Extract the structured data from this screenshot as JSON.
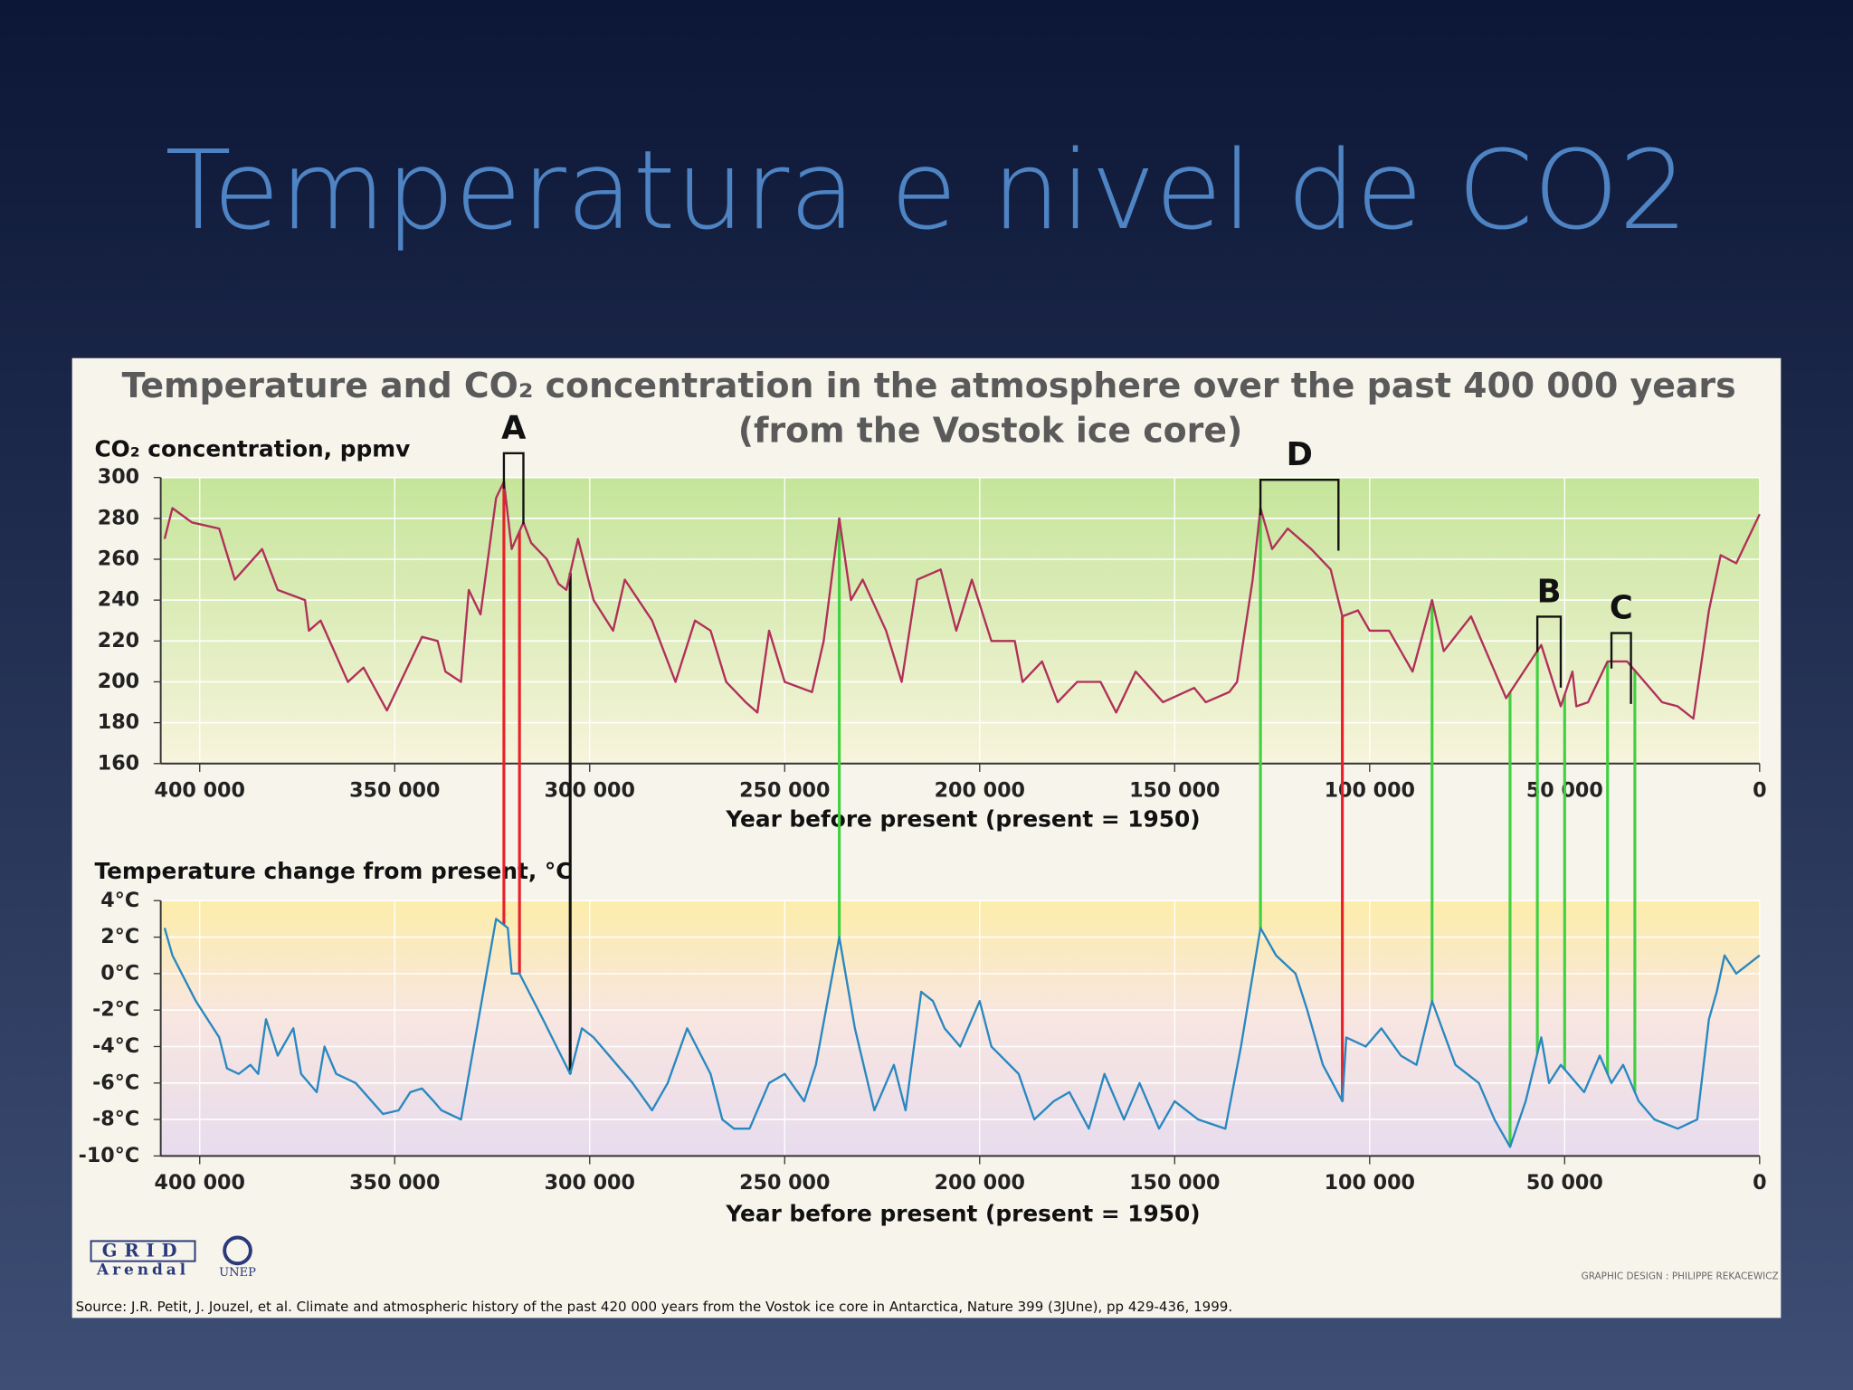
{
  "slide_title": "Temperatura e nivel de CO2",
  "figure": {
    "title": "Temperature and CO₂ concentration in the atmosphere over the past 400 000 years",
    "subtitle": "(from the Vostok ice core)",
    "source": "Source: J.R. Petit, J. Jouzel, et al. Climate and atmospheric history of the past 420 000 years from the Vostok ice core in Antarctica, Nature 399 (3JUne), pp 429-436, 1999.",
    "credit": "GRAPHIC DESIGN : PHILIPPE REKACEWICZ",
    "logo_grid": "GRID",
    "logo_arendal": "Arendal",
    "logo_unep": "UNEP",
    "annotations": [
      {
        "text": "A",
        "x": [
          322000,
          317000
        ]
      },
      {
        "text": "D",
        "x": [
          128000,
          108000
        ]
      },
      {
        "text": "B",
        "x": [
          57000,
          51000
        ]
      },
      {
        "text": "C",
        "x": [
          38000,
          33000
        ]
      }
    ],
    "events": [
      {
        "x": 322000,
        "color": "#e8202a"
      },
      {
        "x": 318000,
        "color": "#e8202a"
      },
      {
        "x": 305000,
        "color": "#111111"
      },
      {
        "x": 107000,
        "color": "#e8202a"
      },
      {
        "x": 236000,
        "color": "#40d040"
      },
      {
        "x": 128000,
        "color": "#40d040"
      },
      {
        "x": 84000,
        "color": "#40d040"
      },
      {
        "x": 64000,
        "color": "#40d040"
      },
      {
        "x": 57000,
        "color": "#40d040"
      },
      {
        "x": 50000,
        "color": "#40d040"
      },
      {
        "x": 39000,
        "color": "#40d040"
      },
      {
        "x": 32000,
        "color": "#40d040"
      }
    ]
  },
  "chart_data": [
    {
      "type": "line",
      "y_label": "CO₂ concentration, ppmv",
      "x_label": "Year before present (present = 1950)",
      "color": "#b0305a",
      "x": [
        409000,
        407000,
        402000,
        395000,
        391000,
        384000,
        380000,
        373000,
        372000,
        369000,
        362000,
        358000,
        352000,
        343000,
        339000,
        337000,
        333000,
        331000,
        328000,
        324000,
        322000,
        320000,
        317000,
        315000,
        311000,
        308000,
        306000,
        303000,
        299000,
        294000,
        291000,
        284000,
        278000,
        273000,
        269000,
        265000,
        260000,
        257000,
        254000,
        250000,
        243000,
        240000,
        236000,
        233000,
        230000,
        224000,
        220000,
        216000,
        210000,
        206000,
        202000,
        197000,
        191000,
        189000,
        184000,
        180000,
        175000,
        169000,
        165000,
        160000,
        153000,
        145000,
        142000,
        136000,
        134000,
        130000,
        128000,
        125000,
        121000,
        115000,
        110000,
        107000,
        103000,
        100000,
        95000,
        92000,
        89000,
        84000,
        81000,
        74000,
        65000,
        56000,
        51000,
        48000,
        47000,
        44000,
        39000,
        34000,
        25000,
        21000,
        17000,
        13000,
        10000,
        6000,
        0
      ],
      "values": [
        270,
        285,
        278,
        275,
        250,
        265,
        245,
        240,
        225,
        230,
        200,
        207,
        186,
        222,
        220,
        205,
        200,
        245,
        233,
        290,
        298,
        265,
        278,
        268,
        260,
        248,
        245,
        270,
        240,
        225,
        250,
        230,
        200,
        230,
        225,
        200,
        190,
        185,
        225,
        200,
        195,
        220,
        280,
        240,
        250,
        225,
        200,
        250,
        255,
        225,
        250,
        220,
        220,
        200,
        210,
        190,
        200,
        200,
        185,
        205,
        190,
        197,
        190,
        195,
        200,
        250,
        285,
        265,
        275,
        265,
        255,
        232,
        235,
        225,
        225,
        215,
        205,
        240,
        215,
        232,
        192,
        218,
        188,
        205,
        188,
        190,
        210,
        210,
        190,
        188,
        182,
        235,
        262,
        258,
        282
      ],
      "xlim": [
        410000,
        0
      ],
      "xticks": [
        {
          "value": 400000,
          "label": "400 000"
        },
        {
          "value": 350000,
          "label": "350 000"
        },
        {
          "value": 300000,
          "label": "300 000"
        },
        {
          "value": 250000,
          "label": "250 000"
        },
        {
          "value": 200000,
          "label": "200 000"
        },
        {
          "value": 150000,
          "label": "150 000"
        },
        {
          "value": 100000,
          "label": "100 000"
        },
        {
          "value": 50000,
          "label": "50 000"
        },
        0
      ],
      "ylim": [
        160,
        300
      ],
      "yticks": [
        160,
        180,
        200,
        220,
        240,
        260,
        280,
        300
      ],
      "grid": true
    },
    {
      "type": "line",
      "y_label": "Temperature change from present, °C",
      "x_label": "Year before present (present = 1950)",
      "color": "#2a88c0",
      "x": [
        409000,
        407000,
        401000,
        395000,
        393000,
        390000,
        387000,
        385000,
        383000,
        380000,
        376000,
        374000,
        370000,
        368000,
        365000,
        360000,
        353000,
        349000,
        346000,
        343000,
        340000,
        338000,
        333000,
        324000,
        321000,
        320000,
        318000,
        312000,
        305000,
        302000,
        299000,
        293000,
        289000,
        284000,
        280000,
        275000,
        269000,
        266000,
        263000,
        259000,
        254000,
        250000,
        245000,
        242000,
        236000,
        232000,
        227000,
        222000,
        219000,
        215000,
        212000,
        209000,
        205000,
        200000,
        197000,
        190000,
        186000,
        181000,
        177000,
        172000,
        168000,
        163000,
        159000,
        154000,
        150000,
        144000,
        137000,
        133000,
        128000,
        124000,
        119000,
        116000,
        112000,
        107000,
        106000,
        101000,
        97000,
        92000,
        88000,
        84000,
        78000,
        72000,
        68000,
        64000,
        60000,
        56000,
        54000,
        51000,
        45000,
        41000,
        38000,
        35000,
        31000,
        27000,
        21000,
        16000,
        13000,
        11000,
        9000,
        6000,
        3000,
        0
      ],
      "values": [
        2.5,
        1,
        -1.5,
        -3.5,
        -5.2,
        -5.5,
        -5,
        -5.5,
        -2.5,
        -4.5,
        -3,
        -5.5,
        -6.5,
        -4,
        -5.5,
        -6,
        -7.7,
        -7.5,
        -6.5,
        -6.3,
        -7,
        -7.5,
        -8,
        3,
        2.5,
        0,
        0,
        -2.5,
        -5.5,
        -3,
        -3.5,
        -5,
        -6,
        -7.5,
        -6,
        -3,
        -5.5,
        -8,
        -8.5,
        -8.5,
        -6,
        -5.5,
        -7,
        -5,
        2,
        -3,
        -7.5,
        -5,
        -7.5,
        -1,
        -1.5,
        -3,
        -4,
        -1.5,
        -4,
        -5.5,
        -8,
        -7,
        -6.5,
        -8.5,
        -5.5,
        -8,
        -6,
        -8.5,
        -7,
        -8,
        -8.5,
        -4,
        2.5,
        1,
        0,
        -2,
        -5,
        -7,
        -3.5,
        -4,
        -3,
        -4.5,
        -5,
        -1.5,
        -5,
        -6,
        -8,
        -9.5,
        -7,
        -3.5,
        -6,
        -5,
        -6.5,
        -4.5,
        -6,
        -5,
        -7,
        -8,
        -8.5,
        -8,
        -2.5,
        -1,
        1,
        0,
        0.5,
        1
      ],
      "xlim": [
        410000,
        0
      ],
      "xticks": [
        {
          "value": 400000,
          "label": "400 000"
        },
        {
          "value": 350000,
          "label": "350 000"
        },
        {
          "value": 300000,
          "label": "300 000"
        },
        {
          "value": 250000,
          "label": "250 000"
        },
        {
          "value": 200000,
          "label": "200 000"
        },
        {
          "value": 150000,
          "label": "150 000"
        },
        {
          "value": 100000,
          "label": "100 000"
        },
        {
          "value": 50000,
          "label": "50 000"
        },
        0
      ],
      "ylim": [
        -10,
        4
      ],
      "yticks": [
        {
          "value": -10,
          "label": "-10°C"
        },
        {
          "value": -8,
          "label": "-8°C"
        },
        {
          "value": -6,
          "label": "-6°C"
        },
        {
          "value": -4,
          "label": "-4°C"
        },
        {
          "value": -2,
          "label": "-2°C"
        },
        {
          "value": 0,
          "label": "0°C"
        },
        {
          "value": 2,
          "label": "2°C"
        },
        {
          "value": 4,
          "label": "4°C"
        }
      ],
      "grid": true
    }
  ]
}
